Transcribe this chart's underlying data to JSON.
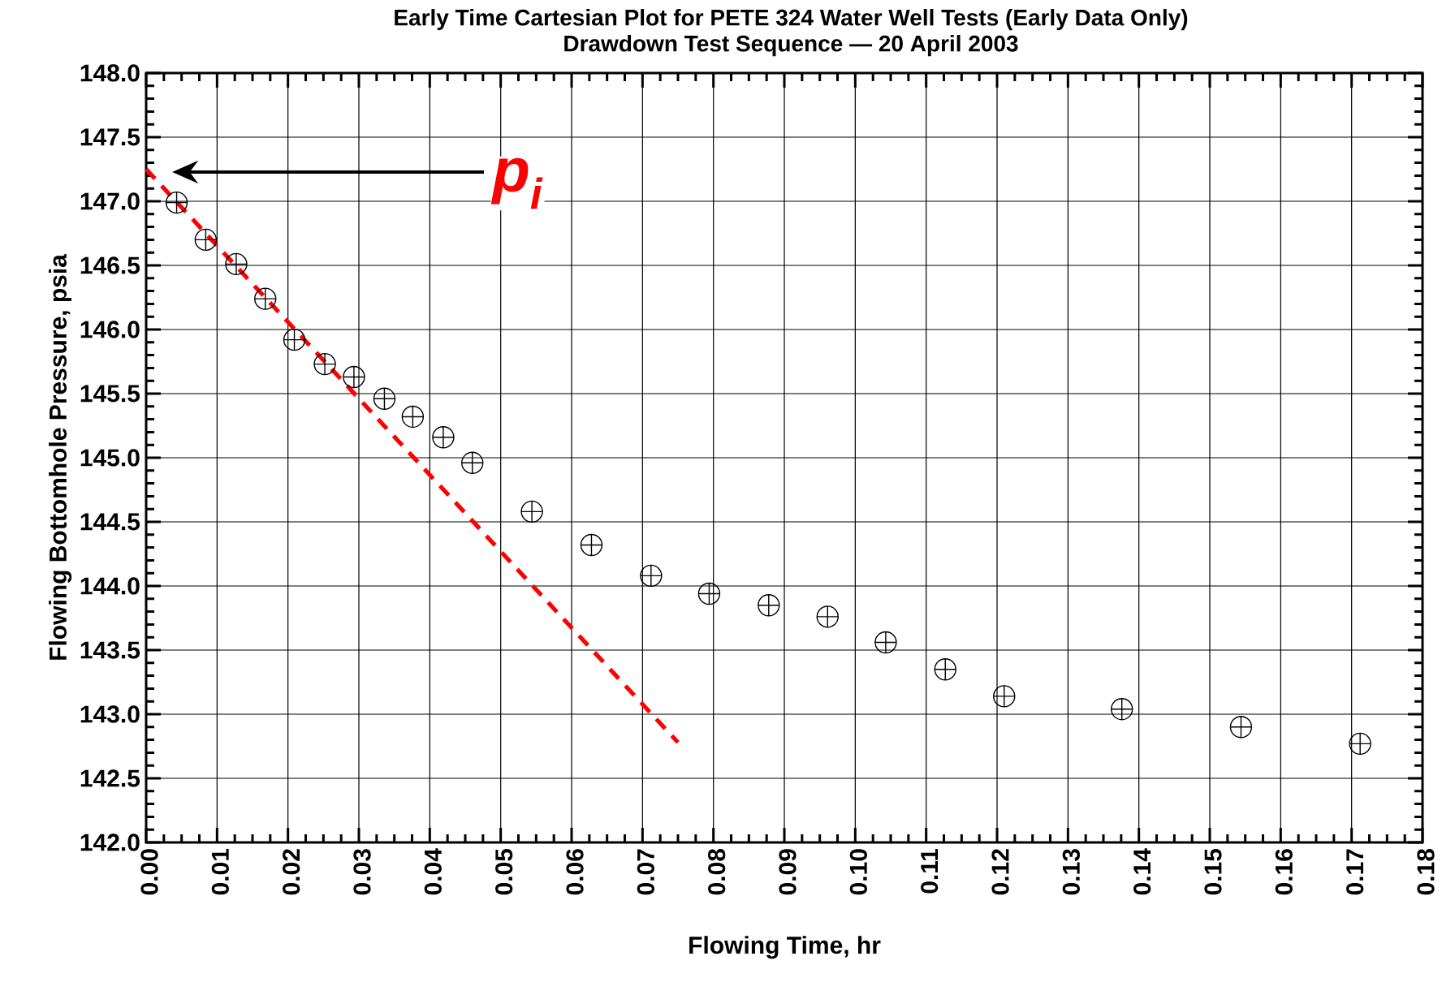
{
  "chart_data": {
    "type": "scatter",
    "title": "Early Time Cartesian Plot for PETE 324 Water Well Tests (Early Data Only)",
    "subtitle": "Drawdown Test Sequence — 20 April 2003",
    "xlabel": "Flowing Time, hr",
    "ylabel": "Flowing Bottomhole Pressure, psia",
    "xlim": [
      0,
      0.18
    ],
    "ylim": [
      142,
      148
    ],
    "xticks": [
      {
        "value": 0,
        "label": "0.00"
      },
      {
        "value": 0.01,
        "label": "0.01"
      },
      {
        "value": 0.02,
        "label": "0.02"
      },
      {
        "value": 0.03,
        "label": "0.03"
      },
      {
        "value": 0.04,
        "label": "0.04"
      },
      {
        "value": 0.05,
        "label": "0.05"
      },
      {
        "value": 0.06,
        "label": "0.06"
      },
      {
        "value": 0.07,
        "label": "0.07"
      },
      {
        "value": 0.08,
        "label": "0.08"
      },
      {
        "value": 0.09,
        "label": "0.09"
      },
      {
        "value": 0.1,
        "label": "0.10"
      },
      {
        "value": 0.11,
        "label": "0.11"
      },
      {
        "value": 0.12,
        "label": "0.12"
      },
      {
        "value": 0.13,
        "label": "0.13"
      },
      {
        "value": 0.14,
        "label": "0.14"
      },
      {
        "value": 0.15,
        "label": "0.15"
      },
      {
        "value": 0.16,
        "label": "0.16"
      },
      {
        "value": 0.17,
        "label": "0.17"
      },
      {
        "value": 0.18,
        "label": "0.18"
      }
    ],
    "yticks": [
      {
        "value": 142,
        "label": "142.0"
      },
      {
        "value": 142.5,
        "label": "142.5"
      },
      {
        "value": 143,
        "label": "143.0"
      },
      {
        "value": 143.5,
        "label": "143.5"
      },
      {
        "value": 144,
        "label": "144.0"
      },
      {
        "value": 144.5,
        "label": "144.5"
      },
      {
        "value": 145,
        "label": "145.0"
      },
      {
        "value": 145.5,
        "label": "145.5"
      },
      {
        "value": 146,
        "label": "146.0"
      },
      {
        "value": 146.5,
        "label": "146.5"
      },
      {
        "value": 147,
        "label": "147.0"
      },
      {
        "value": 147.5,
        "label": "147.5"
      },
      {
        "value": 148,
        "label": "148.0"
      }
    ],
    "grid": true,
    "series": [
      {
        "color": "#000000",
        "x": [
          0.0043,
          0.0084,
          0.0127,
          0.0168,
          0.0209,
          0.0252,
          0.0293,
          0.0336,
          0.0376,
          0.0419,
          0.046,
          0.0544,
          0.0628,
          0.0712,
          0.0794,
          0.0878,
          0.0961,
          0.1043,
          0.1127,
          0.121,
          0.1376,
          0.1544,
          0.1712
        ],
        "values": [
          146.99,
          146.7,
          146.51,
          146.24,
          145.92,
          145.73,
          145.63,
          145.46,
          145.32,
          145.16,
          144.96,
          144.58,
          144.32,
          144.08,
          143.94,
          143.85,
          143.76,
          143.56,
          143.35,
          143.14,
          143.04,
          142.9,
          142.77
        ]
      },
      {
        "type": "line",
        "color": "#ff0000",
        "marker": "none",
        "line_style": "dashed",
        "x": [
          0,
          0.075
        ],
        "values": [
          147.25,
          142.78
        ]
      }
    ],
    "annotations": [
      "p$_{i}$"
    ]
  }
}
